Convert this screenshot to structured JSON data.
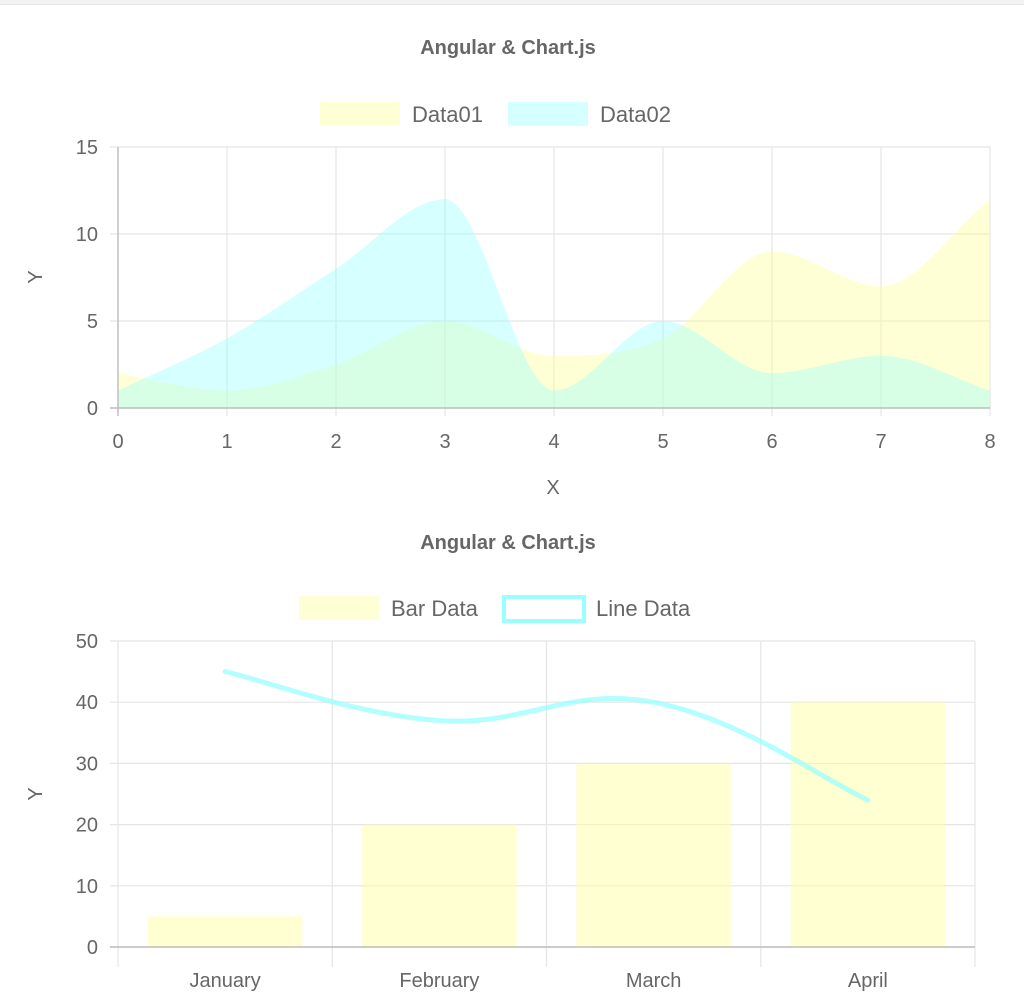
{
  "chart_data": [
    {
      "type": "area",
      "title": "Angular & Chart.js",
      "xlabel": "X",
      "ylabel": "Y",
      "xlim": [
        0,
        8
      ],
      "ylim": [
        0,
        15
      ],
      "x_ticks": [
        0,
        1,
        2,
        3,
        4,
        5,
        6,
        7,
        8
      ],
      "y_ticks": [
        0,
        5,
        10,
        15
      ],
      "grid": true,
      "legend_position": "top",
      "series": [
        {
          "name": "Data01",
          "color": "#ffff99",
          "points": [
            [
              0,
              2
            ],
            [
              1,
              1
            ],
            [
              2,
              2.5
            ],
            [
              3,
              5
            ],
            [
              4,
              3
            ],
            [
              5,
              4
            ],
            [
              6,
              9
            ],
            [
              7,
              7
            ],
            [
              8,
              12
            ]
          ]
        },
        {
          "name": "Data02",
          "color": "#99ffff",
          "points": [
            [
              0,
              1
            ],
            [
              1,
              4
            ],
            [
              2,
              8
            ],
            [
              3,
              12
            ],
            [
              4,
              1
            ],
            [
              5,
              5
            ],
            [
              6,
              2
            ],
            [
              7,
              3
            ],
            [
              8,
              1
            ]
          ]
        }
      ]
    },
    {
      "type": "bar",
      "title": "Angular & Chart.js",
      "xlabel": "",
      "ylabel": "Y",
      "ylim": [
        0,
        50
      ],
      "y_ticks": [
        0,
        10,
        20,
        30,
        40,
        50
      ],
      "grid": true,
      "legend_position": "top",
      "categories": [
        "January",
        "February",
        "March",
        "April"
      ],
      "series": [
        {
          "name": "Bar Data",
          "type": "bar",
          "color": "#ffff99",
          "values": [
            5,
            20,
            30,
            40
          ]
        },
        {
          "name": "Line Data",
          "type": "line",
          "color": "#99ffff",
          "values": [
            45,
            37,
            40,
            24
          ]
        }
      ]
    }
  ]
}
